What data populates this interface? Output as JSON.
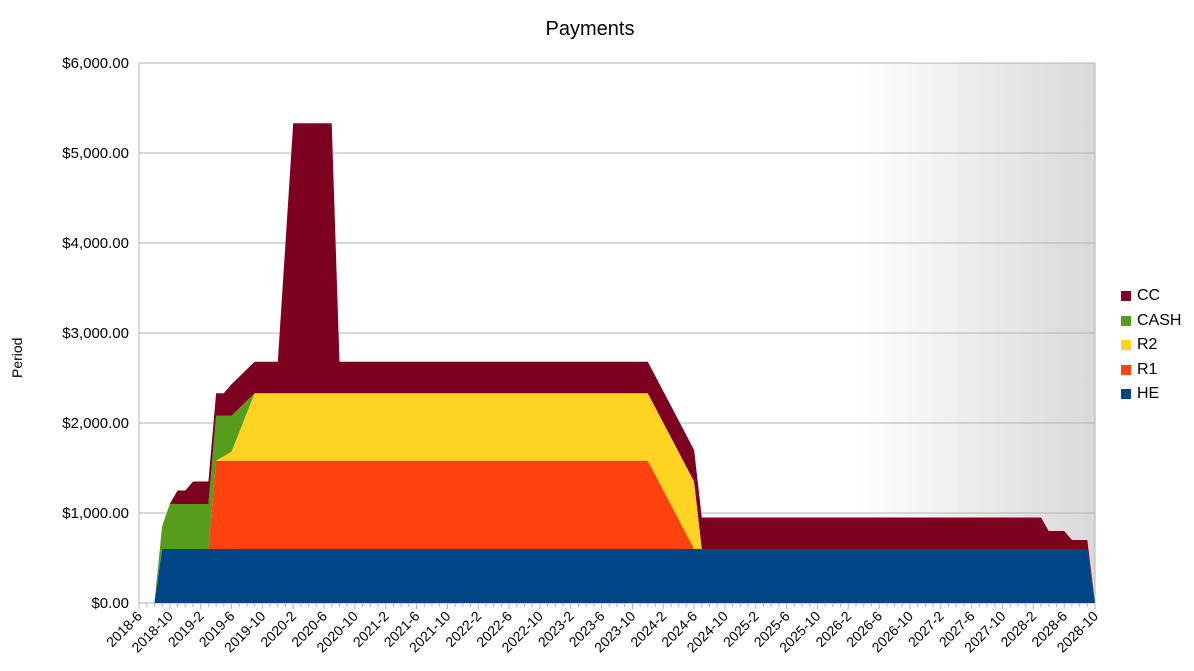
{
  "chart_data": {
    "type": "area",
    "stacked": true,
    "title": "Payments",
    "xlabel": "",
    "ylabel": "Period",
    "ylim": [
      0,
      6000
    ],
    "yticks": [
      "$0.00",
      "$1,000.00",
      "$2,000.00",
      "$3,000.00",
      "$4,000.00",
      "$5,000.00",
      "$6,000.00"
    ],
    "x_tick_labels": [
      "2018-6",
      "2018-10",
      "2019-2",
      "2019-6",
      "2019-10",
      "2020-2",
      "2020-6",
      "2020-10",
      "2021-2",
      "2021-6",
      "2021-10",
      "2022-2",
      "2022-6",
      "2022-10",
      "2023-2",
      "2023-6",
      "2023-10",
      "2024-2",
      "2024-6",
      "2024-10",
      "2025-2",
      "2025-6",
      "2025-10",
      "2026-2",
      "2026-6",
      "2026-10",
      "2027-2",
      "2027-6",
      "2027-10",
      "2028-2",
      "2028-6",
      "2028-10"
    ],
    "grid": true,
    "legend_position": "right",
    "series": [
      {
        "name": "HE",
        "color": "#004586",
        "points": [
          [
            "2018-8",
            0
          ],
          [
            "2018-9",
            600
          ],
          [
            "2024-4",
            600
          ],
          [
            "2024-8",
            600
          ],
          [
            "2028-9",
            600
          ],
          [
            "2028-10",
            0
          ]
        ]
      },
      {
        "name": "R1",
        "color": "#ff420e",
        "points": [
          [
            "2018-8",
            0
          ],
          [
            "2019-3",
            0
          ],
          [
            "2019-4",
            980
          ],
          [
            "2023-12",
            980
          ],
          [
            "2024-6",
            0
          ],
          [
            "2028-10",
            0
          ]
        ]
      },
      {
        "name": "R2",
        "color": "#ffd320",
        "points": [
          [
            "2018-8",
            0
          ],
          [
            "2019-4",
            0
          ],
          [
            "2019-6",
            100
          ],
          [
            "2019-9",
            750
          ],
          [
            "2023-12",
            750
          ],
          [
            "2024-2",
            750
          ],
          [
            "2024-6",
            750
          ],
          [
            "2024-7",
            0
          ],
          [
            "2028-10",
            0
          ]
        ]
      },
      {
        "name": "CASH",
        "color": "#579d1c",
        "points": [
          [
            "2018-8",
            0
          ],
          [
            "2018-10",
            500
          ],
          [
            "2019-2",
            500
          ],
          [
            "2019-4",
            500
          ],
          [
            "2019-6",
            400
          ],
          [
            "2019-9",
            0
          ],
          [
            "2028-10",
            0
          ]
        ]
      },
      {
        "name": "CC",
        "color": "#7e0021",
        "points": [
          [
            "2018-8",
            0
          ],
          [
            "2018-10",
            0
          ],
          [
            "2018-11",
            150
          ],
          [
            "2018-12",
            150
          ],
          [
            "2019-1",
            250
          ],
          [
            "2019-2",
            250
          ],
          [
            "2019-4",
            250
          ],
          [
            "2019-5",
            250
          ],
          [
            "2019-6",
            350
          ],
          [
            "2019-8",
            350
          ],
          [
            "2019-9",
            350
          ],
          [
            "2019-10",
            350
          ],
          [
            "2019-12",
            350
          ],
          [
            "2020-2",
            3000
          ],
          [
            "2020-7",
            3000
          ],
          [
            "2020-8",
            350
          ],
          [
            "2023-12",
            350
          ],
          [
            "2024-2",
            350
          ],
          [
            "2024-3",
            350
          ],
          [
            "2024-6",
            350
          ],
          [
            "2024-7",
            350
          ],
          [
            "2024-8",
            350
          ],
          [
            "2028-3",
            350
          ],
          [
            "2028-4",
            200
          ],
          [
            "2028-6",
            200
          ],
          [
            "2028-7",
            100
          ],
          [
            "2028-9",
            100
          ],
          [
            "2028-10",
            0
          ]
        ]
      }
    ]
  }
}
